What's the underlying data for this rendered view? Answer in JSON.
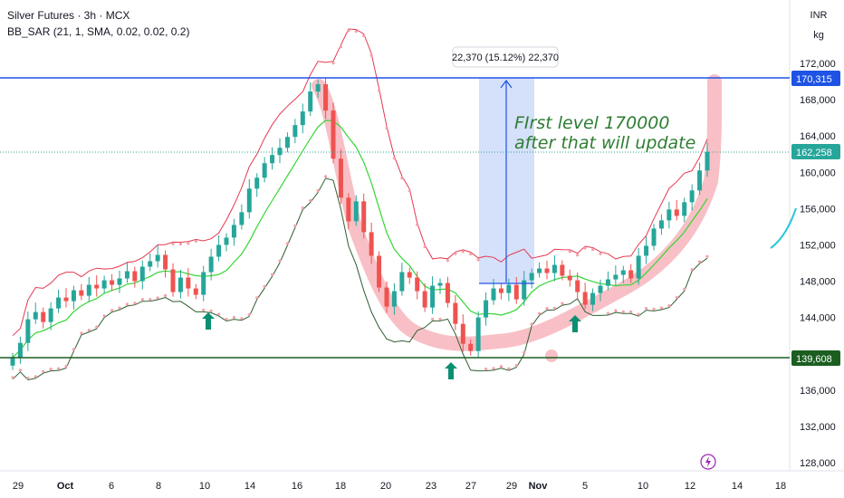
{
  "header": {
    "symbol_line": "Silver Futures · 3h · MCX",
    "indicator_line": "BB_SAR (21, 1, SMA, 0.02, 0.02, 0.2)"
  },
  "units": {
    "currency": "INR",
    "unit": "kg"
  },
  "annotation": {
    "line1": "FIrst level 170000",
    "line2": "after that will update"
  },
  "measure": {
    "label": "22,370 (15.12%) 22,370"
  },
  "price_tags": {
    "resistance": "170,315",
    "current": "162,258",
    "support": "139,608"
  },
  "colors": {
    "up": "#26a69a",
    "down": "#ef5350",
    "upper_band": "#e53950",
    "basis": "#33d633",
    "lower_band": "#2e5e32",
    "sar": "#f4a0a8",
    "resistance_line": "#1e53e5",
    "support_line": "#1b5e20",
    "current_tag": "#26a69a",
    "highlight": "#f8c0c6",
    "measure": "#b3c6f5"
  },
  "chart_data": {
    "type": "candlestick",
    "x_ticks": [
      "29",
      "Oct",
      "6",
      "8",
      "10",
      "14",
      "16",
      "18",
      "20",
      "23",
      "27",
      "29",
      "Nov",
      "5",
      "10",
      "12",
      "14",
      "18"
    ],
    "y_ticks": [
      "172,000",
      "168,000",
      "164,000",
      "160,000",
      "156,000",
      "152,000",
      "148,000",
      "144,000",
      "140,000",
      "136,000",
      "132,000",
      "128,000"
    ],
    "ylim": [
      126000,
      174500
    ],
    "close_series": [
      139600,
      141200,
      143800,
      144600,
      143500,
      145000,
      146200,
      145800,
      147000,
      146400,
      147600,
      147200,
      148100,
      147600,
      148300,
      149100,
      148000,
      149600,
      150200,
      150900,
      149300,
      146800,
      148400,
      147200,
      146500,
      149000,
      150700,
      152000,
      152800,
      154200,
      155600,
      158200,
      159400,
      161000,
      161900,
      162700,
      163900,
      165200,
      166700,
      168900,
      169700,
      166800,
      161500,
      157200,
      154600,
      156800,
      153400,
      150800,
      147300,
      145200,
      146900,
      149000,
      148400,
      146900,
      145100,
      147500,
      147800,
      145600,
      143300,
      141100,
      140300,
      144000,
      145900,
      147200,
      146700,
      147600,
      146000,
      148100,
      148900,
      149400,
      148900,
      149800,
      148600,
      148100,
      146800,
      145400,
      146700,
      147500,
      148200,
      148700,
      149200,
      148300,
      150800,
      151900,
      153800,
      154700,
      155900,
      155200,
      156700,
      158000,
      160200,
      162258
    ],
    "annotations": [
      "FIrst level 170000",
      "after that will update"
    ],
    "levels": [
      170315,
      162258,
      139608
    ]
  }
}
